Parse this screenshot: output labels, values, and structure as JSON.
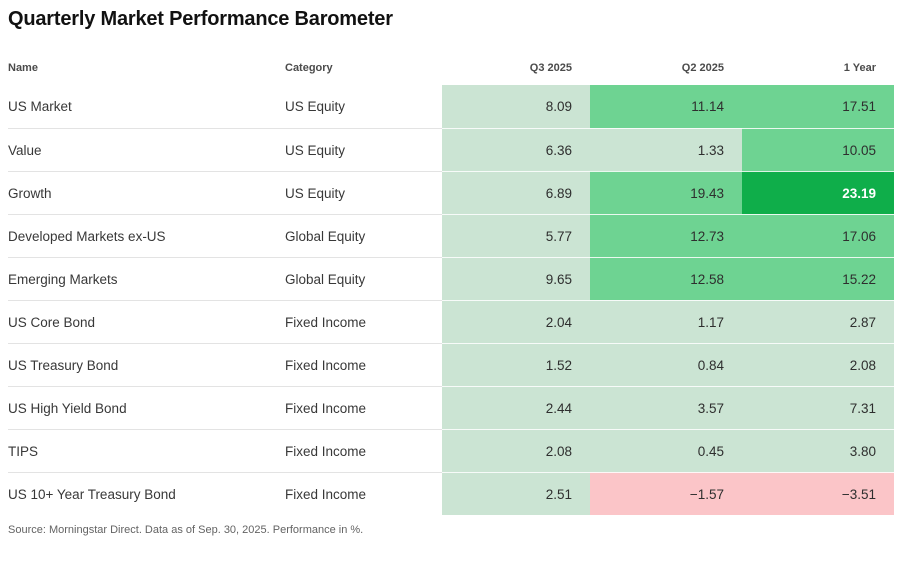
{
  "title": "Quarterly Market Performance Barometer",
  "source_note": "Source: Morningstar Direct. Data as of Sep. 30, 2025. Performance in %.",
  "columns": [
    "Name",
    "Category",
    "Q3 2025",
    "Q2 2025",
    "1 Year"
  ],
  "colors": {
    "low_positive": "#cbe4d3",
    "mid_positive": "#6ed392",
    "high_positive": "#0fae4a",
    "negative": "#fbc5c8",
    "text_dark": "#2e2e2e",
    "text_on_high": "#ffffff"
  },
  "rows": [
    {
      "name": "US Market",
      "category": "US Equity",
      "values": [
        {
          "v": "8.09",
          "tone": "low"
        },
        {
          "v": "11.14",
          "tone": "mid"
        },
        {
          "v": "17.51",
          "tone": "mid"
        }
      ]
    },
    {
      "name": "Value",
      "category": "US Equity",
      "values": [
        {
          "v": "6.36",
          "tone": "low"
        },
        {
          "v": "1.33",
          "tone": "low"
        },
        {
          "v": "10.05",
          "tone": "mid"
        }
      ]
    },
    {
      "name": "Growth",
      "category": "US Equity",
      "values": [
        {
          "v": "6.89",
          "tone": "low"
        },
        {
          "v": "19.43",
          "tone": "mid"
        },
        {
          "v": "23.19",
          "tone": "high"
        }
      ]
    },
    {
      "name": "Developed Markets ex-US",
      "category": "Global Equity",
      "values": [
        {
          "v": "5.77",
          "tone": "low"
        },
        {
          "v": "12.73",
          "tone": "mid"
        },
        {
          "v": "17.06",
          "tone": "mid"
        }
      ]
    },
    {
      "name": "Emerging Markets",
      "category": "Global Equity",
      "values": [
        {
          "v": "9.65",
          "tone": "low"
        },
        {
          "v": "12.58",
          "tone": "mid"
        },
        {
          "v": "15.22",
          "tone": "mid"
        }
      ]
    },
    {
      "name": "US Core Bond",
      "category": "Fixed Income",
      "values": [
        {
          "v": "2.04",
          "tone": "low"
        },
        {
          "v": "1.17",
          "tone": "low"
        },
        {
          "v": "2.87",
          "tone": "low"
        }
      ]
    },
    {
      "name": "US Treasury Bond",
      "category": "Fixed Income",
      "values": [
        {
          "v": "1.52",
          "tone": "low"
        },
        {
          "v": "0.84",
          "tone": "low"
        },
        {
          "v": "2.08",
          "tone": "low"
        }
      ]
    },
    {
      "name": "US High Yield Bond",
      "category": "Fixed Income",
      "values": [
        {
          "v": "2.44",
          "tone": "low"
        },
        {
          "v": "3.57",
          "tone": "low"
        },
        {
          "v": "7.31",
          "tone": "low"
        }
      ]
    },
    {
      "name": "TIPS",
      "category": "Fixed Income",
      "values": [
        {
          "v": "2.08",
          "tone": "low"
        },
        {
          "v": "0.45",
          "tone": "low"
        },
        {
          "v": "3.80",
          "tone": "low"
        }
      ]
    },
    {
      "name": "US 10+ Year Treasury Bond",
      "category": "Fixed Income",
      "values": [
        {
          "v": "2.51",
          "tone": "low"
        },
        {
          "v": "−1.57",
          "tone": "neg"
        },
        {
          "v": "−3.51",
          "tone": "neg"
        }
      ]
    }
  ],
  "chart_data": {
    "type": "table",
    "subtype": "heatmap",
    "title": "Quarterly Market Performance Barometer",
    "columns": [
      "Name",
      "Category",
      "Q3 2025",
      "Q2 2025",
      "1 Year"
    ],
    "rows": [
      [
        "US Market",
        "US Equity",
        8.09,
        11.14,
        17.51
      ],
      [
        "Value",
        "US Equity",
        6.36,
        1.33,
        10.05
      ],
      [
        "Growth",
        "US Equity",
        6.89,
        19.43,
        23.19
      ],
      [
        "Developed Markets ex-US",
        "Global Equity",
        5.77,
        12.73,
        17.06
      ],
      [
        "Emerging Markets",
        "Global Equity",
        9.65,
        12.58,
        15.22
      ],
      [
        "US Core Bond",
        "Fixed Income",
        2.04,
        1.17,
        2.87
      ],
      [
        "US Treasury Bond",
        "Fixed Income",
        1.52,
        0.84,
        2.08
      ],
      [
        "US High Yield Bond",
        "Fixed Income",
        2.44,
        3.57,
        7.31
      ],
      [
        "TIPS",
        "Fixed Income",
        2.08,
        0.45,
        3.8
      ],
      [
        "US 10+ Year Treasury Bond",
        "Fixed Income",
        2.51,
        -1.57,
        -3.51
      ]
    ],
    "value_unit": "%",
    "color_scale_note": "green shades for positive values (darker = higher), pink for negative values",
    "annotations": "Source: Morningstar Direct. Data as of Sep. 30, 2025. Performance in %."
  }
}
